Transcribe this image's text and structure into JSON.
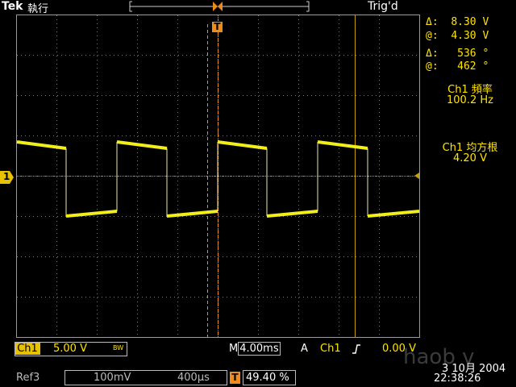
{
  "header": {
    "brand": "Tek",
    "mode": "執行",
    "trigger_state": "Trig'd",
    "trigger_marker": "T"
  },
  "cursor_readout": {
    "time_delta": "8.30 V",
    "time_at": "4.30 V",
    "phase_delta": "536 °",
    "phase_at": "462 °",
    "delta_symbol": "Δ:",
    "at_symbol": "@:"
  },
  "measurements": [
    {
      "label": "Ch1 頻率",
      "value": "100.2 Hz"
    },
    {
      "label": "Ch1 均方根",
      "value": "4.20 V"
    }
  ],
  "channel_marker": "1",
  "footer": {
    "ch1_label": "Ch1",
    "ch1_scale": "5.00 V",
    "bw_symbol": "BW",
    "timebase_prefix": "M",
    "timebase": "4.00ms",
    "trigger_mode": "A",
    "trigger_source": "Ch1",
    "trigger_slope": "ʃ",
    "trigger_level": "0.00 V",
    "ref_label": "Ref3",
    "ref_volts": "100mV",
    "ref_time": "400µs",
    "trigger_position_marker": "T",
    "trigger_position": "49.40 %",
    "date": "3 10月 2004",
    "time": "22:38:26",
    "watermark": "haob v"
  },
  "colors": {
    "trace": "#f2ee1a",
    "cursor_orange": "#f08a1a",
    "cursor_olive": "#c8a000",
    "grid": "#9a9a9a",
    "readout": "#ffe400"
  },
  "icons": [
    "delta-icon",
    "trigger-t-icon",
    "channel-1-marker-icon",
    "rising-slope-icon"
  ]
}
